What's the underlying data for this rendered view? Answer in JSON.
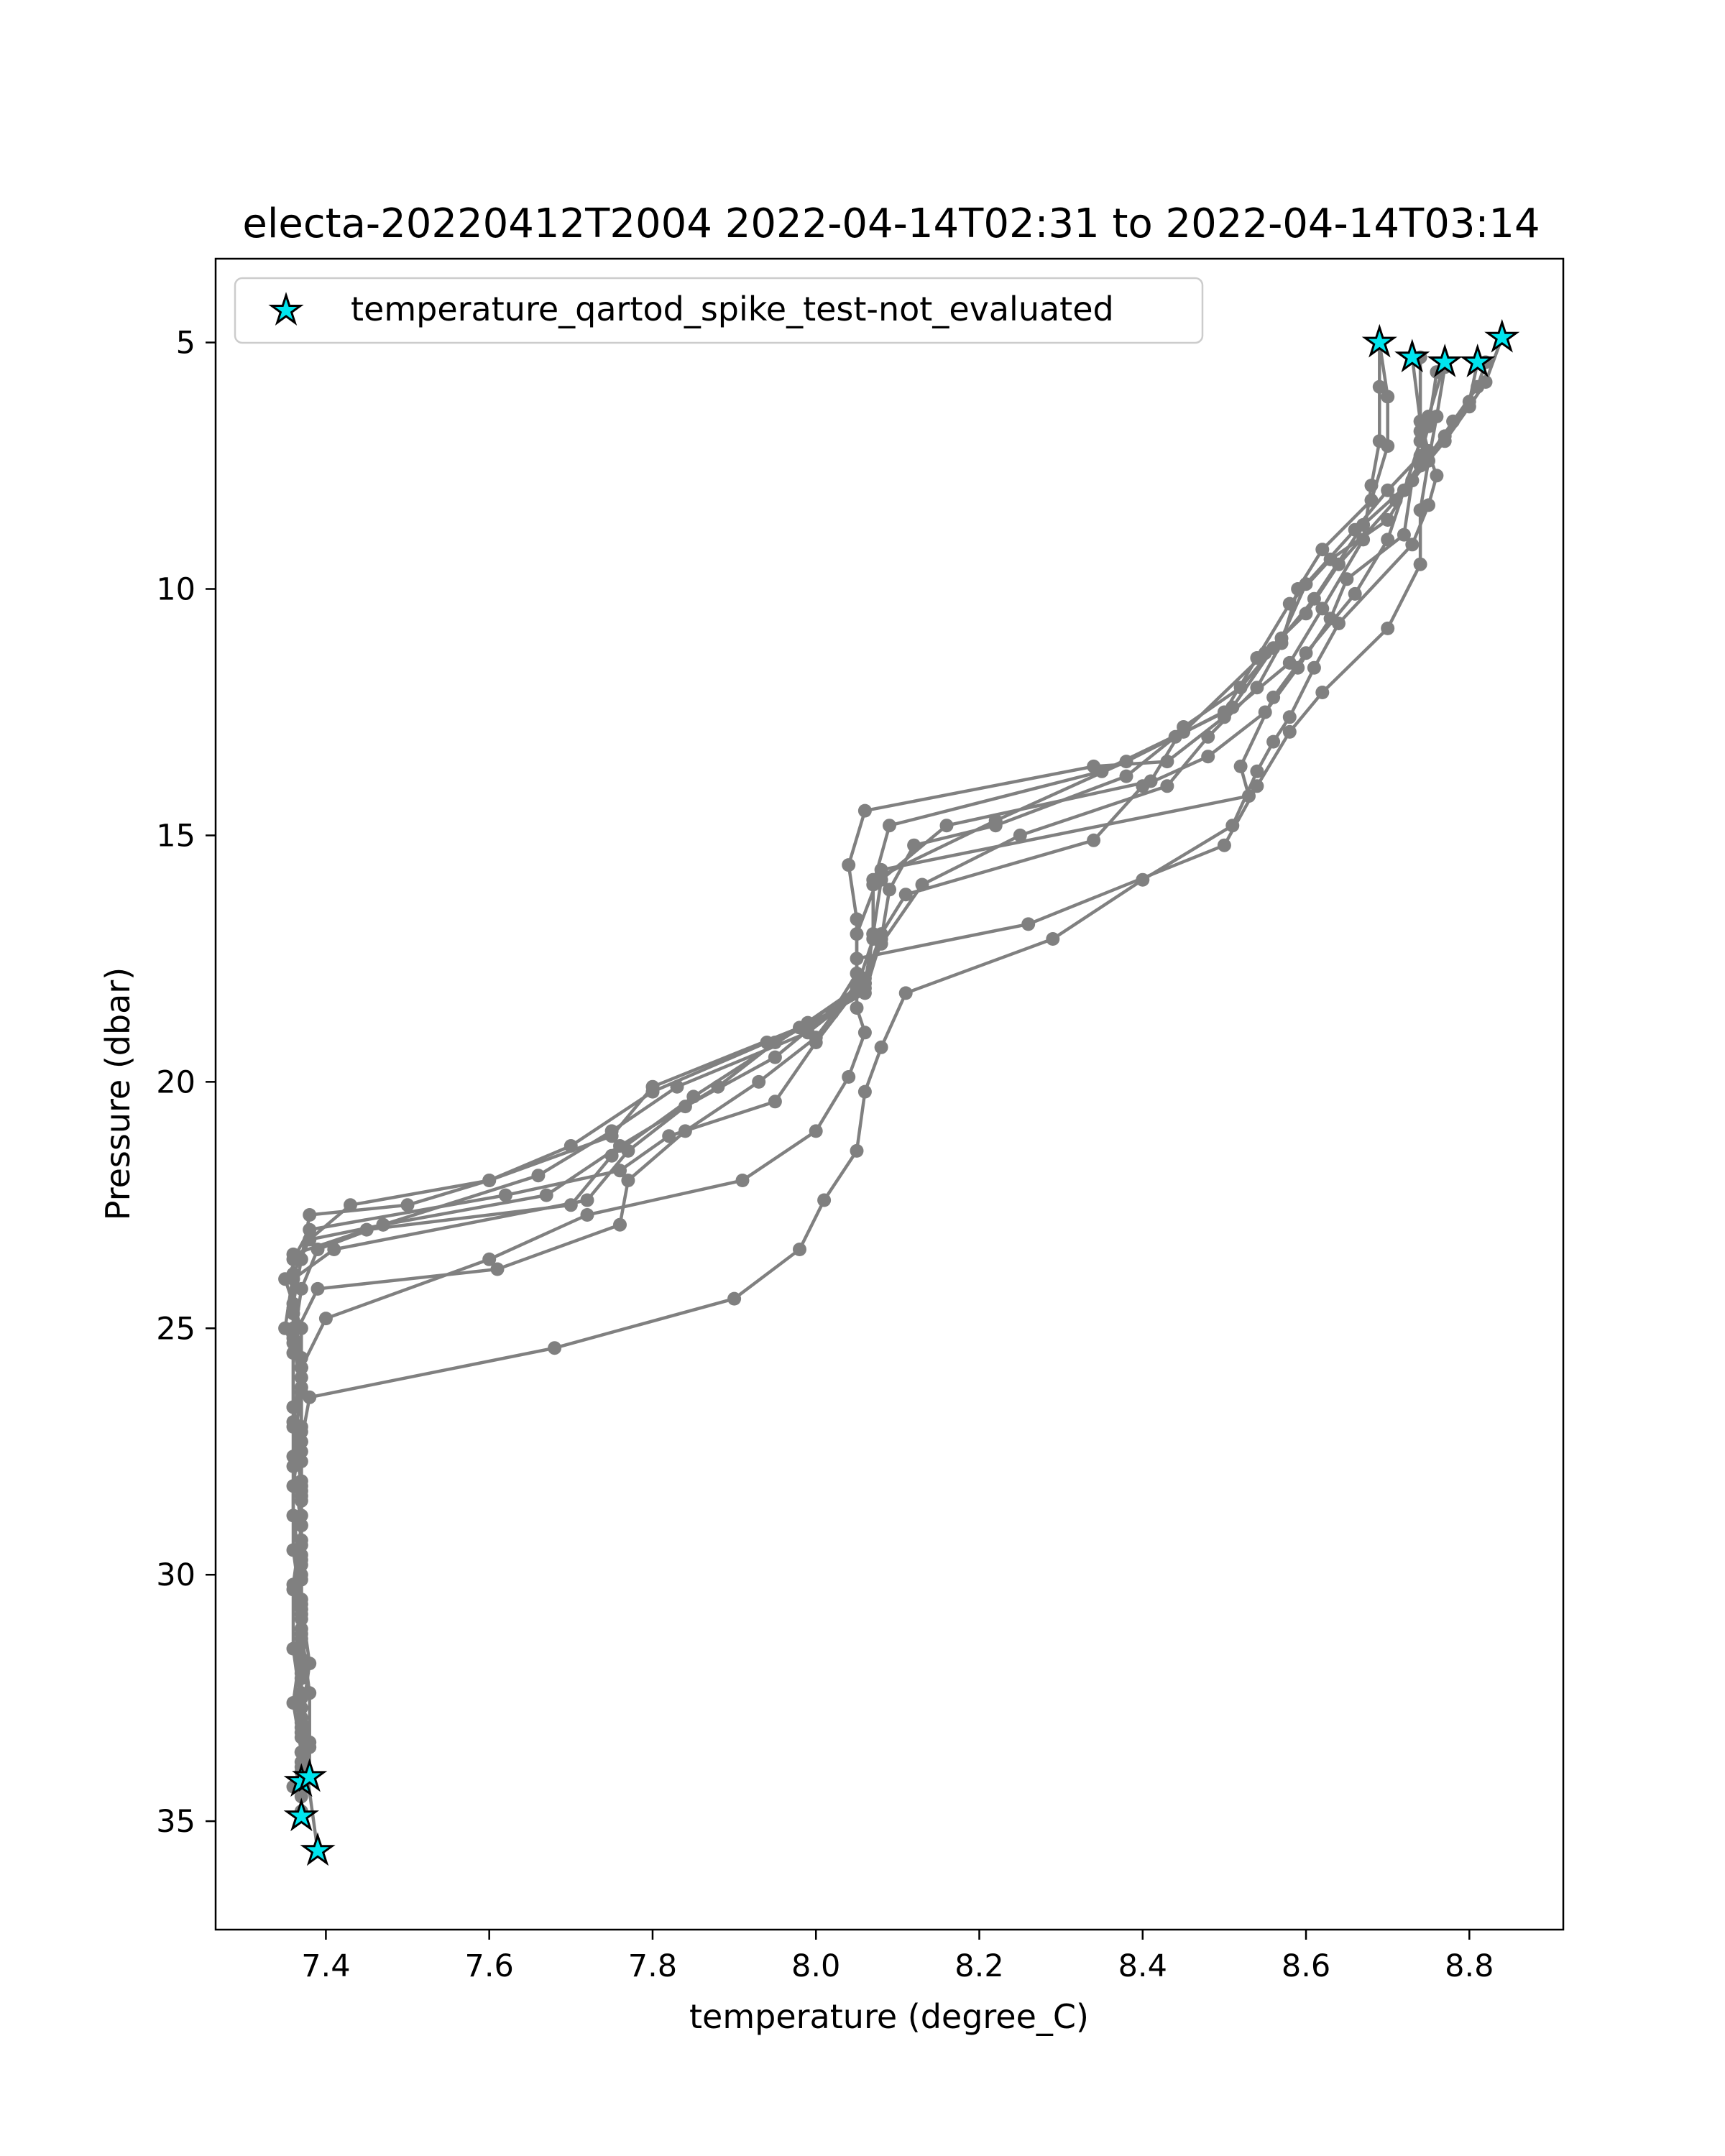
{
  "chart_data": {
    "type": "scatter",
    "title": "electa-20220412T2004 2022-04-14T02:31 to 2022-04-14T03:14",
    "xlabel": "temperature (degree_C)",
    "ylabel": "Pressure (dbar)",
    "xlim": [
      7.265,
      8.915
    ],
    "ylim": [
      37.2,
      3.3
    ],
    "y_inverted": true,
    "x_ticks": [
      7.4,
      7.6,
      7.8,
      8.0,
      8.2,
      8.4,
      8.6,
      8.8
    ],
    "x_tick_labels": [
      "7.4",
      "7.6",
      "7.8",
      "8.0",
      "8.2",
      "8.4",
      "8.6",
      "8.8"
    ],
    "y_ticks": [
      5,
      10,
      15,
      20,
      25,
      30,
      35
    ],
    "y_tick_labels": [
      "5",
      "10",
      "15",
      "20",
      "25",
      "30",
      "35"
    ],
    "grid": false,
    "legend": {
      "placement": "upper-left",
      "entries": [
        {
          "label": "temperature_qartod_spike_test-not_evaluated",
          "marker": "star",
          "color": "#00e5ee",
          "edge_color": "#000000"
        }
      ]
    },
    "profile_color": "#808080",
    "profiles": [
      {
        "points": [
          [
            8.69,
            5.0
          ],
          [
            8.69,
            5.9
          ],
          [
            8.69,
            7.0
          ],
          [
            8.68,
            7.9
          ],
          [
            8.67,
            9.0
          ],
          [
            8.62,
            10.4
          ],
          [
            8.58,
            11.5
          ],
          [
            8.5,
            12.6
          ],
          [
            8.43,
            13.5
          ],
          [
            8.34,
            13.6
          ],
          [
            8.06,
            14.5
          ],
          [
            8.04,
            15.6
          ],
          [
            8.05,
            16.7
          ],
          [
            8.05,
            17.8
          ],
          [
            8.02,
            18.6
          ],
          [
            7.94,
            19.2
          ],
          [
            7.8,
            20.2
          ],
          [
            7.7,
            21.3
          ],
          [
            7.6,
            22.0
          ],
          [
            7.5,
            22.5
          ],
          [
            7.38,
            22.7
          ],
          [
            7.37,
            23.6
          ],
          [
            7.36,
            24.5
          ],
          [
            7.36,
            25.5
          ],
          [
            7.36,
            26.6
          ],
          [
            7.36,
            27.8
          ],
          [
            7.37,
            29.0
          ],
          [
            7.36,
            30.2
          ],
          [
            7.37,
            31.4
          ],
          [
            7.36,
            32.6
          ],
          [
            7.37,
            33.6
          ],
          [
            7.37,
            34.2
          ]
        ]
      },
      {
        "points": [
          [
            8.73,
            5.3
          ],
          [
            8.74,
            6.6
          ],
          [
            8.75,
            7.2
          ],
          [
            8.71,
            8.2
          ],
          [
            8.64,
            9.5
          ],
          [
            8.6,
            10.5
          ],
          [
            8.55,
            11.3
          ],
          [
            8.45,
            12.9
          ],
          [
            8.35,
            13.7
          ],
          [
            8.09,
            14.8
          ],
          [
            8.07,
            16.0
          ],
          [
            8.07,
            17.1
          ],
          [
            8.05,
            18.1
          ],
          [
            7.98,
            18.9
          ],
          [
            7.8,
            20.1
          ],
          [
            7.75,
            21.1
          ],
          [
            7.6,
            22.0
          ],
          [
            7.43,
            22.5
          ],
          [
            7.38,
            23.2
          ],
          [
            7.35,
            24.0
          ],
          [
            7.37,
            25.0
          ],
          [
            7.37,
            26.2
          ],
          [
            7.36,
            27.6
          ],
          [
            7.36,
            28.8
          ],
          [
            7.37,
            30.0
          ],
          [
            7.37,
            31.2
          ],
          [
            7.37,
            32.4
          ],
          [
            7.38,
            33.4
          ],
          [
            7.38,
            34.1
          ]
        ]
      },
      {
        "points": [
          [
            8.77,
            5.4
          ],
          [
            8.76,
            5.6
          ],
          [
            8.75,
            6.7
          ],
          [
            8.74,
            7.3
          ],
          [
            8.7,
            8.0
          ],
          [
            8.66,
            8.8
          ],
          [
            8.6,
            9.9
          ],
          [
            8.57,
            11.0
          ],
          [
            8.52,
            12.0
          ],
          [
            8.45,
            12.8
          ],
          [
            8.41,
            13.9
          ],
          [
            8.16,
            14.8
          ],
          [
            8.08,
            15.9
          ],
          [
            8.07,
            17.0
          ],
          [
            8.06,
            18.0
          ],
          [
            7.99,
            18.8
          ],
          [
            7.85,
            20.3
          ],
          [
            7.75,
            21.5
          ],
          [
            7.7,
            22.5
          ],
          [
            7.45,
            23.0
          ],
          [
            7.36,
            23.5
          ],
          [
            7.36,
            24.6
          ],
          [
            7.37,
            25.6
          ],
          [
            7.36,
            26.9
          ],
          [
            7.37,
            28.1
          ],
          [
            7.37,
            29.3
          ],
          [
            7.37,
            30.5
          ],
          [
            7.37,
            31.7
          ],
          [
            7.37,
            32.9
          ],
          [
            7.37,
            33.9
          ],
          [
            7.37,
            34.9
          ]
        ]
      },
      {
        "points": [
          [
            8.81,
            5.4
          ],
          [
            8.8,
            6.2
          ],
          [
            8.77,
            6.9
          ],
          [
            8.74,
            7.5
          ],
          [
            8.7,
            8.6
          ],
          [
            8.63,
            9.4
          ],
          [
            8.58,
            10.3
          ],
          [
            8.54,
            11.4
          ],
          [
            8.5,
            12.5
          ],
          [
            8.38,
            13.5
          ],
          [
            8.22,
            14.7
          ],
          [
            8.07,
            15.9
          ],
          [
            8.07,
            17.0
          ],
          [
            8.06,
            18.1
          ],
          [
            7.99,
            19.0
          ],
          [
            7.83,
            20.1
          ],
          [
            7.75,
            21.0
          ],
          [
            7.66,
            21.9
          ],
          [
            7.47,
            22.9
          ],
          [
            7.38,
            23.2
          ],
          [
            7.36,
            23.9
          ],
          [
            7.35,
            25.0
          ],
          [
            7.37,
            25.8
          ],
          [
            7.36,
            27.0
          ],
          [
            7.37,
            28.2
          ],
          [
            7.37,
            29.6
          ],
          [
            7.37,
            30.9
          ],
          [
            7.37,
            32.1
          ],
          [
            7.37,
            33.2
          ],
          [
            7.39,
            35.6
          ]
        ]
      },
      {
        "points": [
          [
            8.84,
            4.9
          ],
          [
            8.82,
            5.8
          ],
          [
            8.8,
            6.3
          ],
          [
            8.77,
            7.0
          ],
          [
            8.73,
            7.8
          ],
          [
            8.67,
            8.7
          ],
          [
            8.61,
            10.2
          ],
          [
            8.56,
            11.2
          ],
          [
            8.51,
            12.4
          ],
          [
            8.44,
            13.0
          ],
          [
            8.38,
            13.8
          ],
          [
            8.22,
            14.8
          ],
          [
            8.12,
            15.2
          ],
          [
            8.09,
            16.1
          ],
          [
            8.08,
            17.1
          ],
          [
            8.06,
            18.2
          ],
          [
            7.95,
            19.2
          ],
          [
            7.88,
            20.1
          ],
          [
            7.76,
            21.3
          ],
          [
            7.67,
            22.3
          ],
          [
            7.47,
            22.9
          ],
          [
            7.39,
            23.4
          ],
          [
            7.37,
            24.2
          ],
          [
            7.36,
            25.3
          ],
          [
            7.36,
            26.6
          ],
          [
            7.37,
            27.5
          ],
          [
            7.37,
            28.8
          ],
          [
            7.37,
            30.1
          ],
          [
            7.37,
            31.3
          ],
          [
            7.37,
            32.5
          ],
          [
            7.37,
            33.6
          ],
          [
            7.37,
            34.5
          ]
        ]
      },
      {
        "points": [
          [
            8.69,
            5.0
          ],
          [
            8.7,
            6.1
          ],
          [
            8.7,
            7.1
          ],
          [
            8.68,
            8.2
          ],
          [
            8.62,
            9.2
          ],
          [
            8.59,
            10.0
          ],
          [
            8.57,
            11.1
          ],
          [
            8.54,
            12.0
          ],
          [
            8.48,
            13.0
          ],
          [
            8.43,
            14.0
          ],
          [
            8.25,
            15.0
          ],
          [
            8.13,
            16.0
          ],
          [
            8.08,
            17.2
          ],
          [
            8.06,
            18.0
          ],
          [
            7.95,
            19.5
          ],
          [
            7.84,
            20.5
          ],
          [
            7.77,
            21.4
          ],
          [
            7.72,
            22.4
          ],
          [
            7.41,
            23.4
          ],
          [
            7.36,
            24.0
          ],
          [
            7.36,
            25.0
          ],
          [
            7.37,
            25.8
          ],
          [
            7.37,
            27.1
          ],
          [
            7.37,
            28.5
          ],
          [
            7.37,
            29.7
          ],
          [
            7.37,
            30.8
          ],
          [
            7.37,
            32.0
          ],
          [
            7.37,
            33.3
          ],
          [
            7.37,
            34.0
          ]
        ]
      },
      {
        "points": [
          [
            8.82,
            5.4
          ],
          [
            8.81,
            5.9
          ],
          [
            8.78,
            6.6
          ],
          [
            8.73,
            7.8
          ],
          [
            8.72,
            8.9
          ],
          [
            8.65,
            9.8
          ],
          [
            8.63,
            10.6
          ],
          [
            8.59,
            11.6
          ],
          [
            8.55,
            12.5
          ],
          [
            8.48,
            13.4
          ],
          [
            8.4,
            14.0
          ],
          [
            8.34,
            15.1
          ],
          [
            8.11,
            16.2
          ],
          [
            8.08,
            17.0
          ],
          [
            8.06,
            17.9
          ],
          [
            8.0,
            19.2
          ],
          [
            7.95,
            20.4
          ],
          [
            7.82,
            21.1
          ],
          [
            7.76,
            21.8
          ],
          [
            7.62,
            22.3
          ],
          [
            7.38,
            23.0
          ],
          [
            7.36,
            23.6
          ],
          [
            7.36,
            24.7
          ],
          [
            7.37,
            26.0
          ],
          [
            7.37,
            27.3
          ],
          [
            7.37,
            28.3
          ],
          [
            7.37,
            29.4
          ],
          [
            7.37,
            30.6
          ],
          [
            7.38,
            31.8
          ],
          [
            7.37,
            33.0
          ],
          [
            7.38,
            34.1
          ]
        ]
      },
      {
        "points": [
          [
            8.77,
            5.4
          ],
          [
            8.75,
            6.5
          ],
          [
            8.74,
            7.0
          ],
          [
            8.72,
            8.0
          ],
          [
            8.7,
            9.0
          ],
          [
            8.66,
            10.1
          ],
          [
            8.6,
            11.3
          ],
          [
            8.56,
            12.2
          ],
          [
            8.52,
            13.6
          ],
          [
            8.53,
            14.2
          ],
          [
            8.08,
            15.7
          ],
          [
            8.05,
            17.0
          ],
          [
            8.05,
            18.0
          ],
          [
            8.0,
            19.1
          ],
          [
            7.93,
            20.0
          ],
          [
            7.84,
            21.0
          ],
          [
            7.77,
            22.0
          ],
          [
            7.76,
            22.9
          ],
          [
            7.61,
            23.8
          ],
          [
            7.39,
            24.2
          ],
          [
            7.36,
            25.2
          ],
          [
            7.37,
            26.3
          ],
          [
            7.37,
            27.7
          ],
          [
            7.37,
            29.0
          ],
          [
            7.36,
            30.3
          ],
          [
            7.36,
            31.5
          ],
          [
            7.37,
            32.7
          ],
          [
            7.37,
            33.8
          ],
          [
            7.37,
            34.8
          ]
        ]
      },
      {
        "points": [
          [
            8.74,
            5.3
          ],
          [
            8.74,
            6.8
          ],
          [
            8.76,
            7.7
          ],
          [
            8.75,
            8.3
          ],
          [
            8.73,
            9.1
          ],
          [
            8.64,
            10.7
          ],
          [
            8.61,
            11.6
          ],
          [
            8.58,
            12.6
          ],
          [
            8.56,
            13.1
          ],
          [
            8.54,
            13.7
          ],
          [
            8.51,
            14.8
          ],
          [
            8.4,
            15.9
          ],
          [
            8.29,
            17.1
          ],
          [
            8.11,
            18.2
          ],
          [
            8.08,
            19.3
          ],
          [
            8.06,
            20.2
          ],
          [
            8.05,
            21.4
          ],
          [
            8.01,
            22.4
          ],
          [
            7.98,
            23.4
          ],
          [
            7.9,
            24.4
          ],
          [
            7.68,
            25.4
          ],
          [
            7.38,
            26.4
          ],
          [
            7.37,
            27.3
          ],
          [
            7.37,
            28.4
          ],
          [
            7.37,
            29.8
          ],
          [
            7.37,
            31.1
          ],
          [
            7.38,
            32.4
          ],
          [
            7.38,
            33.5
          ],
          [
            7.36,
            34.3
          ]
        ]
      },
      {
        "points": [
          [
            8.77,
            5.5
          ],
          [
            8.76,
            6.5
          ],
          [
            8.75,
            7.4
          ],
          [
            8.74,
            8.4
          ],
          [
            8.74,
            9.5
          ],
          [
            8.7,
            10.8
          ],
          [
            8.62,
            12.1
          ],
          [
            8.58,
            12.9
          ],
          [
            8.54,
            14.0
          ],
          [
            8.5,
            15.2
          ],
          [
            8.26,
            16.8
          ],
          [
            8.05,
            17.5
          ],
          [
            8.05,
            18.5
          ],
          [
            8.06,
            19.0
          ],
          [
            8.04,
            19.9
          ],
          [
            8.0,
            21.0
          ],
          [
            7.91,
            22.0
          ],
          [
            7.72,
            22.7
          ],
          [
            7.6,
            23.6
          ],
          [
            7.4,
            24.8
          ],
          [
            7.37,
            25.8
          ],
          [
            7.37,
            27.0
          ],
          [
            7.36,
            28.2
          ],
          [
            7.36,
            29.5
          ],
          [
            7.37,
            30.7
          ],
          [
            7.37,
            31.9
          ],
          [
            7.37,
            33.1
          ],
          [
            7.37,
            34.0
          ]
        ]
      }
    ],
    "flagged_points": [
      [
        8.69,
        5.0
      ],
      [
        8.73,
        5.3
      ],
      [
        8.77,
        5.4
      ],
      [
        8.81,
        5.4
      ],
      [
        8.84,
        4.9
      ],
      [
        7.37,
        34.2
      ],
      [
        7.38,
        34.1
      ],
      [
        7.37,
        34.9
      ],
      [
        7.39,
        35.6
      ]
    ]
  }
}
